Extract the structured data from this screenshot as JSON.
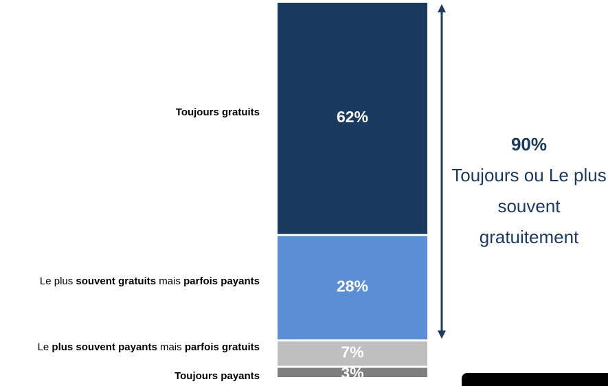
{
  "chart_data": {
    "type": "stacked_bar",
    "categories": [
      [
        {
          "text": "Toujours gratuits",
          "bold": true
        }
      ],
      [
        {
          "text": "Le plus ",
          "bold": false
        },
        {
          "text": "souvent gratuits",
          "bold": true
        },
        {
          "text": " mais ",
          "bold": false
        },
        {
          "text": "parfois payants",
          "bold": true
        }
      ],
      [
        {
          "text": "Le ",
          "bold": false
        },
        {
          "text": "plus souvent payants",
          "bold": true
        },
        {
          "text": " mais ",
          "bold": false
        },
        {
          "text": "parfois gratuits",
          "bold": true
        }
      ],
      [
        {
          "text": "Toujours payants",
          "bold": true
        }
      ]
    ],
    "values": [
      62,
      28,
      7,
      3
    ],
    "value_labels": [
      "62%",
      "28%",
      "7%",
      "3%"
    ],
    "colors": [
      "#1b3a5f",
      "#5a8fd6",
      "#bfbfbf",
      "#7f7f7f"
    ],
    "ylim": [
      0,
      100
    ],
    "annotation": {
      "value": 90,
      "label": "90%",
      "text": "Toujours ou Le plus souvent gratuitement",
      "color": "#1b3a5f"
    }
  }
}
